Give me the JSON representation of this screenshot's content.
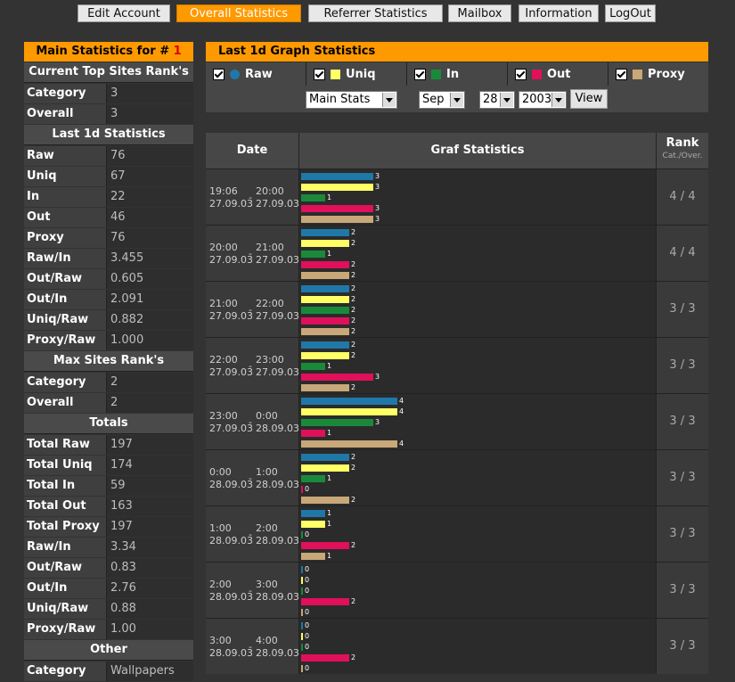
{
  "nav": [
    {
      "label": "Edit Account",
      "active": false
    },
    {
      "label": "Overall Statistics",
      "active": true
    },
    {
      "label": "Referrer Statistics",
      "active": false
    },
    {
      "label": "Mailbox",
      "active": false
    },
    {
      "label": "Information",
      "active": false
    },
    {
      "label": "LogOut",
      "active": false
    }
  ],
  "left": {
    "title_prefix": "Main Statistics for #",
    "site_number": "1",
    "sections": [
      {
        "title": "Current Top Sites Rank's",
        "rows": [
          [
            "Category",
            "3"
          ],
          [
            "Overall",
            "3"
          ]
        ]
      },
      {
        "title": "Last 1d Statistics",
        "rows": [
          [
            "Raw",
            "76"
          ],
          [
            "Uniq",
            "67"
          ],
          [
            "In",
            "22"
          ],
          [
            "Out",
            "46"
          ],
          [
            "Proxy",
            "76"
          ],
          [
            "Raw/In",
            "3.455"
          ],
          [
            "Out/Raw",
            "0.605"
          ],
          [
            "Out/In",
            "2.091"
          ],
          [
            "Uniq/Raw",
            "0.882"
          ],
          [
            "Proxy/Raw",
            "1.000"
          ]
        ]
      },
      {
        "title": "Max Sites Rank's",
        "rows": [
          [
            "Category",
            "2"
          ],
          [
            "Overall",
            "2"
          ]
        ]
      },
      {
        "title": "Totals",
        "rows": [
          [
            "Total Raw",
            "197"
          ],
          [
            "Total Uniq",
            "174"
          ],
          [
            "Total In",
            "59"
          ],
          [
            "Total Out",
            "163"
          ],
          [
            "Total Proxy",
            "197"
          ],
          [
            "Raw/In",
            "3.34"
          ],
          [
            "Out/Raw",
            "0.83"
          ],
          [
            "Out/In",
            "2.76"
          ],
          [
            "Uniq/Raw",
            "0.88"
          ],
          [
            "Proxy/Raw",
            "1.00"
          ]
        ]
      },
      {
        "title": "Other",
        "rows": [
          [
            "Category",
            "Wallpapers"
          ]
        ]
      }
    ]
  },
  "right": {
    "title": "Last 1d Graph Statistics",
    "legend": [
      {
        "label": "Raw",
        "color": "#1f78a8",
        "round": true
      },
      {
        "label": "Uniq",
        "color": "#ffff66",
        "round": false
      },
      {
        "label": "In",
        "color": "#1a8a3a",
        "round": false
      },
      {
        "label": "Out",
        "color": "#e0105a",
        "round": false
      },
      {
        "label": "Proxy",
        "color": "#c8a878",
        "round": false
      }
    ],
    "controls": {
      "stats_select": "Main Stats",
      "month_select": "Sep",
      "day_select": "28",
      "year_select": "2003",
      "view_button": "View"
    }
  },
  "table": {
    "col_date": "Date",
    "col_graf": "Graf Statistics",
    "col_rank": "Rank",
    "col_rank_sub": "Cat./Over.",
    "rows": [
      {
        "from_time": "19:06",
        "from_date": "27.09.03",
        "to_time": "20:00",
        "to_date": "27.09.03",
        "values": [
          3,
          3,
          1,
          3,
          3
        ],
        "rank": "4 / 4"
      },
      {
        "from_time": "20:00",
        "from_date": "27.09.03",
        "to_time": "21:00",
        "to_date": "27.09.03",
        "values": [
          2,
          2,
          1,
          2,
          2
        ],
        "rank": "4 / 4"
      },
      {
        "from_time": "21:00",
        "from_date": "27.09.03",
        "to_time": "22:00",
        "to_date": "27.09.03",
        "values": [
          2,
          2,
          2,
          2,
          2
        ],
        "rank": "3 / 3"
      },
      {
        "from_time": "22:00",
        "from_date": "27.09.03",
        "to_time": "23:00",
        "to_date": "27.09.03",
        "values": [
          2,
          2,
          1,
          3,
          2
        ],
        "rank": "3 / 3"
      },
      {
        "from_time": "23:00",
        "from_date": "27.09.03",
        "to_time": "0:00",
        "to_date": "28.09.03",
        "values": [
          4,
          4,
          3,
          1,
          4
        ],
        "rank": "3 / 3"
      },
      {
        "from_time": "0:00",
        "from_date": "28.09.03",
        "to_time": "1:00",
        "to_date": "28.09.03",
        "values": [
          2,
          2,
          1,
          0,
          2
        ],
        "rank": "3 / 3"
      },
      {
        "from_time": "1:00",
        "from_date": "28.09.03",
        "to_time": "2:00",
        "to_date": "28.09.03",
        "values": [
          1,
          1,
          0,
          2,
          1
        ],
        "rank": "3 / 3"
      },
      {
        "from_time": "2:00",
        "from_date": "28.09.03",
        "to_time": "3:00",
        "to_date": "28.09.03",
        "values": [
          0,
          0,
          0,
          2,
          0
        ],
        "rank": "3 / 3"
      },
      {
        "from_time": "3:00",
        "from_date": "28.09.03",
        "to_time": "4:00",
        "to_date": "28.09.03",
        "values": [
          0,
          0,
          0,
          2,
          0
        ],
        "rank": "3 / 3"
      }
    ]
  }
}
